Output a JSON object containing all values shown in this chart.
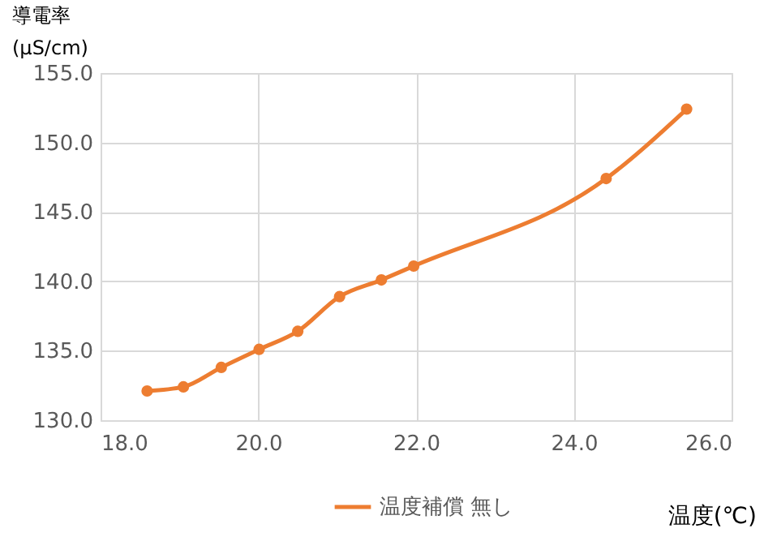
{
  "chart_data": {
    "type": "line",
    "xlabel": "温度(℃)",
    "ylabel": "導電率\n(µS/cm)",
    "x": [
      18.59,
      19.05,
      19.53,
      20.01,
      20.5,
      21.03,
      21.56,
      21.97,
      24.41,
      25.43
    ],
    "series": [
      {
        "name": "温度補償 無し",
        "color": "#ed7d31",
        "values": [
          132.1,
          132.4,
          133.8,
          135.1,
          136.4,
          138.9,
          140.1,
          141.1,
          147.4,
          152.4
        ]
      }
    ],
    "xlim": [
      18,
      26
    ],
    "xticks": [
      {
        "value": 18,
        "label": "18.0"
      },
      {
        "value": 20,
        "label": "20.0"
      },
      {
        "value": 22,
        "label": "22.0"
      },
      {
        "value": 24,
        "label": "24.0"
      },
      {
        "value": 26,
        "label": "26.0"
      }
    ],
    "ylim": [
      130,
      155
    ],
    "yticks": [
      {
        "value": 130,
        "label": "130.0"
      },
      {
        "value": 135,
        "label": "135.0"
      },
      {
        "value": 140,
        "label": "140.0"
      },
      {
        "value": 145,
        "label": "145.0"
      },
      {
        "value": 150,
        "label": "150.0"
      },
      {
        "value": 155,
        "label": "155.0"
      }
    ],
    "grid": true,
    "legend": "bottom",
    "marker": "circle",
    "line_style": "solid"
  }
}
